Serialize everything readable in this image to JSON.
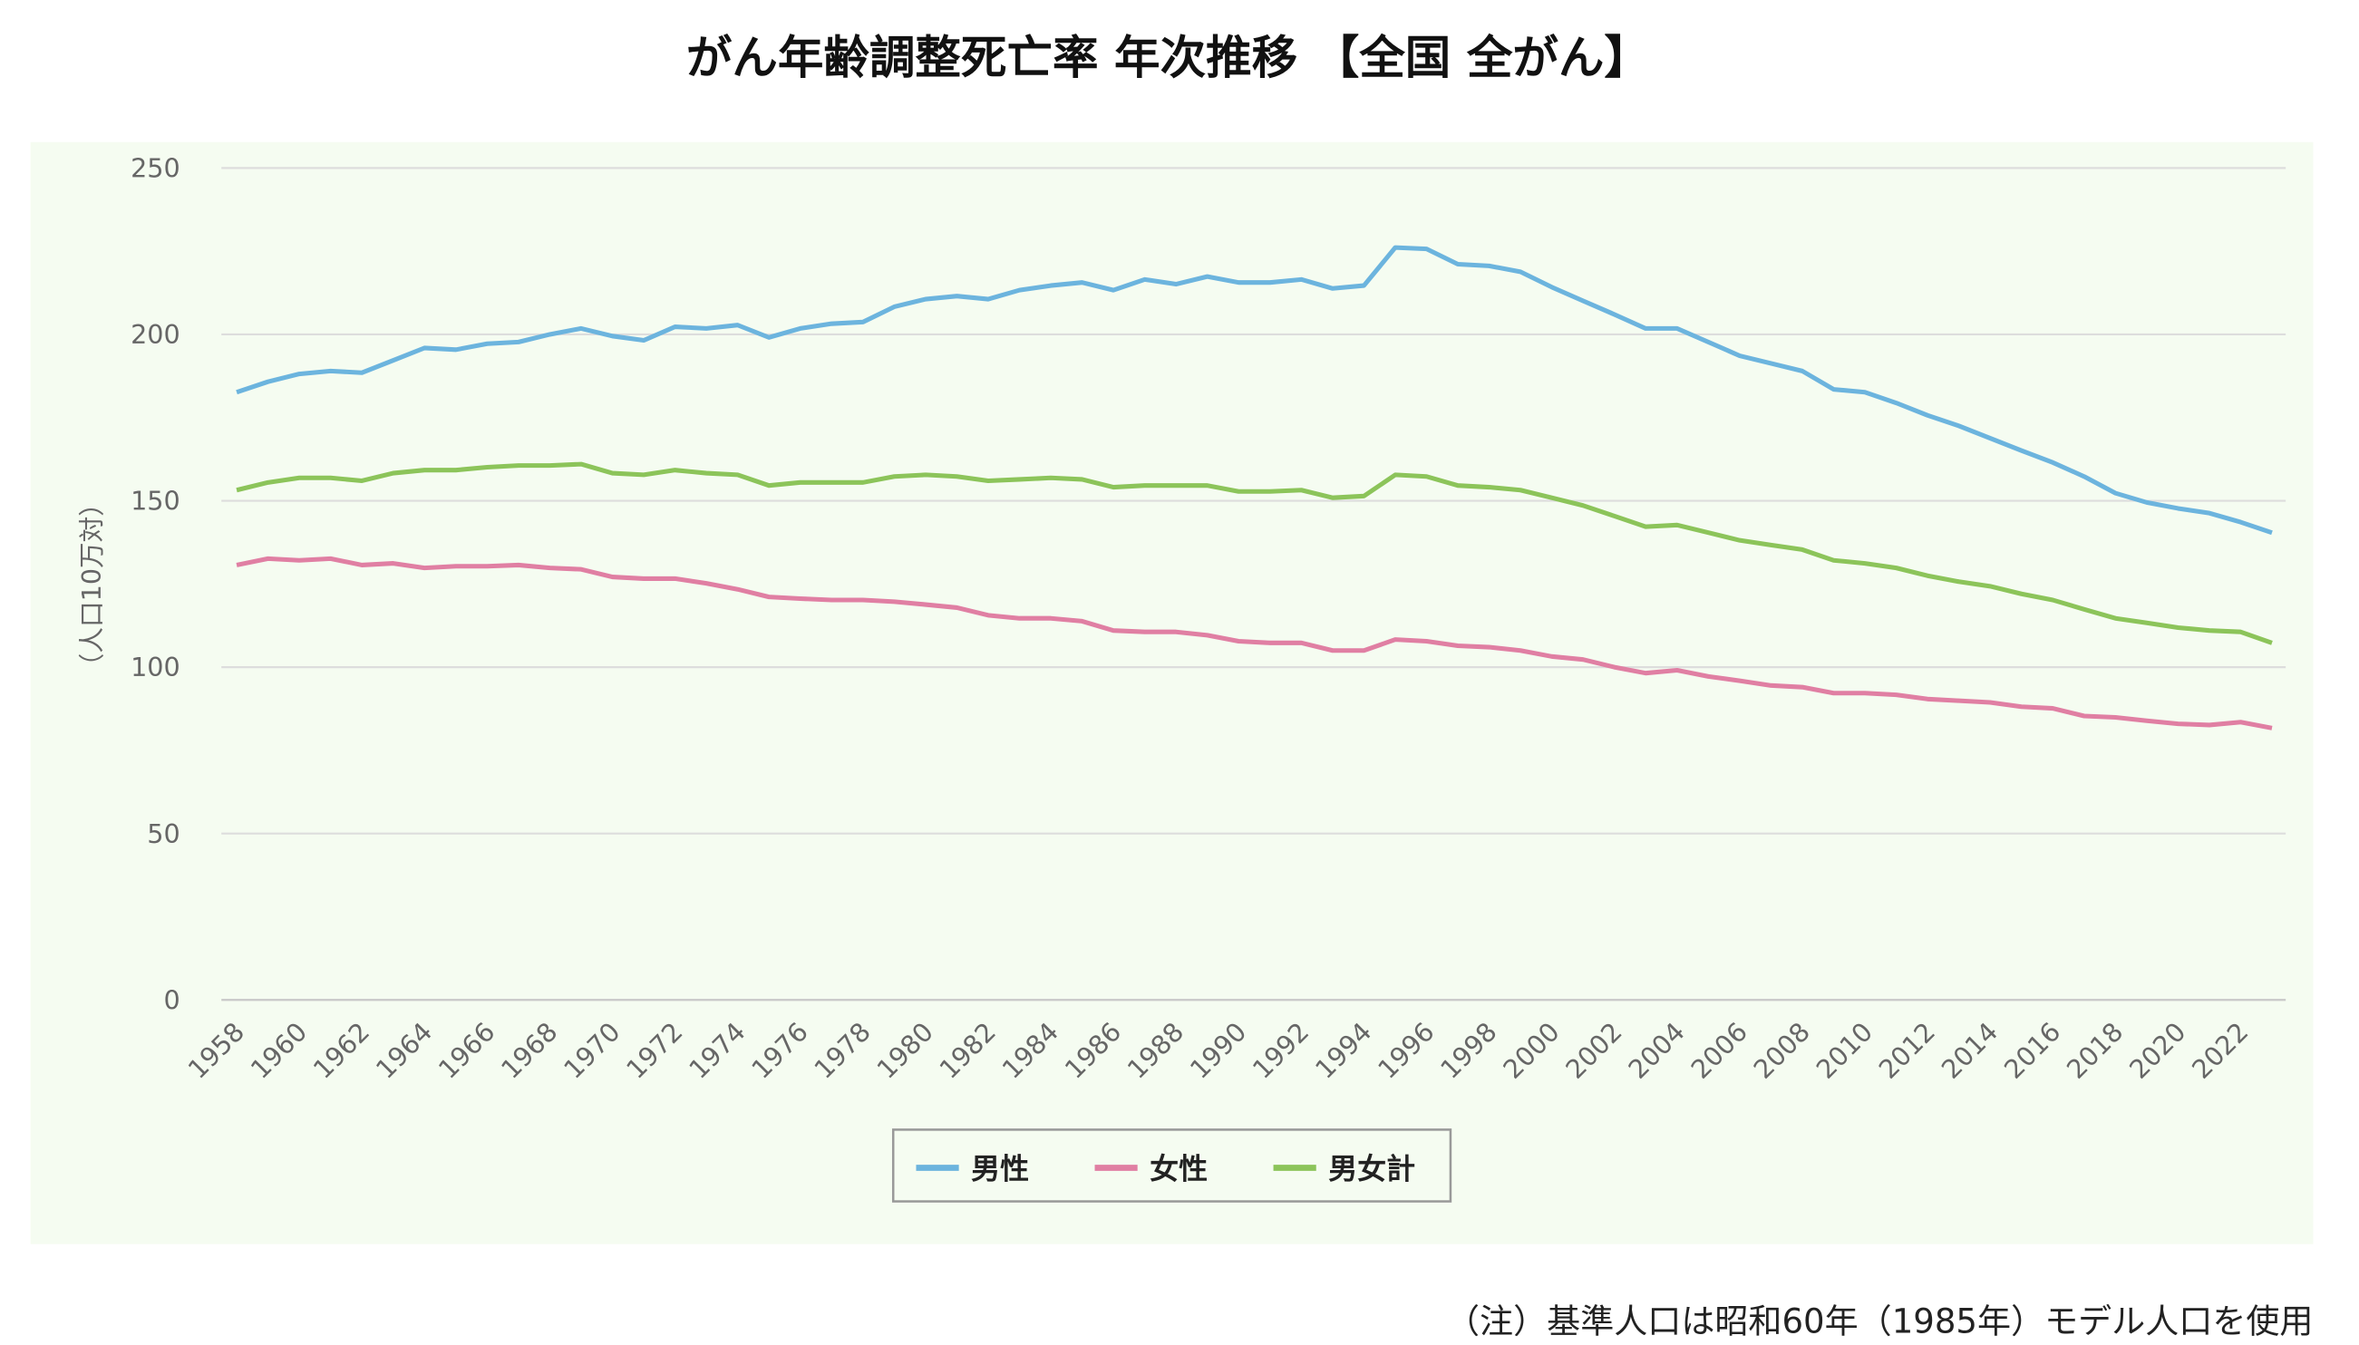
{
  "chart_data": {
    "type": "line",
    "title": "がん年齢調整死亡率 年次推移 【全国 全がん】",
    "xlabel": "",
    "ylabel": "（人口10万対）",
    "ylim": [
      0,
      250
    ],
    "yticks": [
      0,
      50,
      100,
      150,
      200,
      250
    ],
    "grid": true,
    "legend_position": "bottom",
    "x": [
      1958,
      1959,
      1960,
      1961,
      1962,
      1963,
      1964,
      1965,
      1966,
      1967,
      1968,
      1969,
      1970,
      1971,
      1972,
      1973,
      1974,
      1975,
      1976,
      1977,
      1978,
      1979,
      1980,
      1981,
      1982,
      1983,
      1984,
      1985,
      1986,
      1987,
      1988,
      1989,
      1990,
      1991,
      1992,
      1993,
      1994,
      1995,
      1996,
      1997,
      1998,
      1999,
      2000,
      2001,
      2002,
      2003,
      2004,
      2005,
      2006,
      2007,
      2008,
      2009,
      2010,
      2011,
      2012,
      2013,
      2014,
      2015,
      2016,
      2017,
      2018,
      2019,
      2020,
      2021,
      2022,
      2023
    ],
    "xtick_labels": [
      "1958",
      "1960",
      "1962",
      "1964",
      "1966",
      "1968",
      "1970",
      "1972",
      "1974",
      "1976",
      "1978",
      "1980",
      "1982",
      "1984",
      "1986",
      "1988",
      "1990",
      "1992",
      "1994",
      "1996",
      "1998",
      "2000",
      "2002",
      "2004",
      "2006",
      "2008",
      "2010",
      "2012",
      "2014",
      "2016",
      "2018",
      "2020",
      "2022"
    ],
    "series": [
      {
        "name": "男性",
        "color": "#6cb4de",
        "values": [
          182.6,
          185.8,
          188.1,
          189.0,
          188.5,
          192.2,
          195.9,
          195.4,
          197.2,
          197.7,
          200.0,
          201.8,
          199.5,
          198.2,
          202.3,
          201.8,
          202.8,
          199.1,
          201.8,
          203.2,
          203.7,
          208.3,
          210.6,
          211.5,
          210.6,
          213.3,
          214.7,
          215.6,
          213.3,
          216.5,
          215.1,
          217.4,
          215.6,
          215.6,
          216.5,
          213.8,
          214.7,
          226.1,
          225.7,
          221.1,
          220.6,
          218.8,
          214.2,
          210.1,
          206.0,
          201.8,
          201.8,
          197.7,
          193.6,
          191.3,
          189.0,
          183.5,
          182.6,
          179.4,
          175.7,
          172.5,
          168.8,
          165.1,
          161.5,
          157.3,
          152.3,
          149.5,
          147.7,
          146.3,
          143.6,
          140.4
        ]
      },
      {
        "name": "女性",
        "color": "#e07fa3",
        "values": [
          130.7,
          132.6,
          132.1,
          132.6,
          130.7,
          131.2,
          129.8,
          130.3,
          130.3,
          130.7,
          129.8,
          129.4,
          127.1,
          126.6,
          126.6,
          125.2,
          123.4,
          121.1,
          120.6,
          120.2,
          120.2,
          119.7,
          118.8,
          117.9,
          115.6,
          114.7,
          114.7,
          113.8,
          111.0,
          110.6,
          110.6,
          109.6,
          107.8,
          107.3,
          107.3,
          105.0,
          105.0,
          108.3,
          107.8,
          106.4,
          106.0,
          105.0,
          103.2,
          102.3,
          100.0,
          98.2,
          99.1,
          97.2,
          95.9,
          94.5,
          94.0,
          92.2,
          92.2,
          91.7,
          90.4,
          89.9,
          89.4,
          88.1,
          87.6,
          85.3,
          84.9,
          83.9,
          83.0,
          82.6,
          83.5,
          81.7
        ]
      },
      {
        "name": "男女計",
        "color": "#8cc45a",
        "values": [
          153.2,
          155.5,
          156.9,
          156.9,
          156.0,
          158.3,
          159.2,
          159.2,
          160.1,
          160.6,
          160.6,
          161.0,
          158.3,
          157.8,
          159.2,
          158.3,
          157.8,
          154.6,
          155.5,
          155.5,
          155.5,
          157.3,
          157.8,
          157.3,
          156.0,
          156.4,
          156.9,
          156.4,
          154.1,
          154.6,
          154.6,
          154.6,
          152.8,
          152.8,
          153.2,
          150.9,
          151.4,
          157.8,
          157.3,
          154.6,
          154.1,
          153.2,
          150.9,
          148.6,
          145.4,
          142.2,
          142.7,
          140.4,
          138.1,
          136.7,
          135.3,
          132.1,
          131.2,
          129.8,
          127.5,
          125.7,
          124.3,
          122.0,
          120.2,
          117.4,
          114.7,
          113.3,
          111.9,
          111.0,
          110.6,
          107.3
        ]
      }
    ]
  },
  "footnote": "（注）基準人口は昭和60年（1985年）モデル人口を使用",
  "colors": {
    "plot_background": "#f5fcf1",
    "gridline": "#dddddd"
  }
}
